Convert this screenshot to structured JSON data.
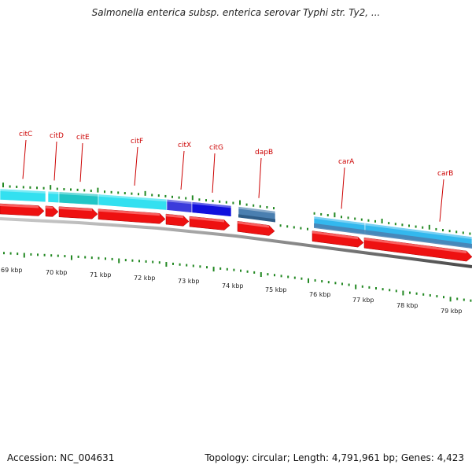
{
  "header": {
    "title": "Salmonella enterica subsp. enterica serovar Typhi str. Ty2, ..."
  },
  "footer": {
    "accession": "Accession: NC_004631",
    "summary": "Topology: circular; Length: 4,791,961 bp; Genes: 4,423"
  },
  "gene_labels": [
    {
      "name": "citC"
    },
    {
      "name": "citD"
    },
    {
      "name": "citE"
    },
    {
      "name": "citF"
    },
    {
      "name": "citX"
    },
    {
      "name": "citG"
    },
    {
      "name": "dapB"
    },
    {
      "name": "carA"
    },
    {
      "name": "carB"
    }
  ],
  "kbp_labels": [
    {
      "text": "69 kbp"
    },
    {
      "text": "70 kbp"
    },
    {
      "text": "71 kbp"
    },
    {
      "text": "72 kbp"
    },
    {
      "text": "73 kbp"
    },
    {
      "text": "74 kbp"
    },
    {
      "text": "75 kbp"
    },
    {
      "text": "76 kbp"
    },
    {
      "text": "77 kbp"
    },
    {
      "text": "78 kbp"
    },
    {
      "text": "79 kbp"
    }
  ],
  "colors": {
    "gene_label": "#cc0000",
    "cds_arrow": "#ee1111",
    "cyan_feature": "#33e0f0",
    "blue_feature": "#1111dd",
    "steelblue_feature": "#4a7fb0",
    "lightblue_feature": "#33b8ee",
    "gc_tick": "#228822",
    "backbone": "#808080"
  }
}
